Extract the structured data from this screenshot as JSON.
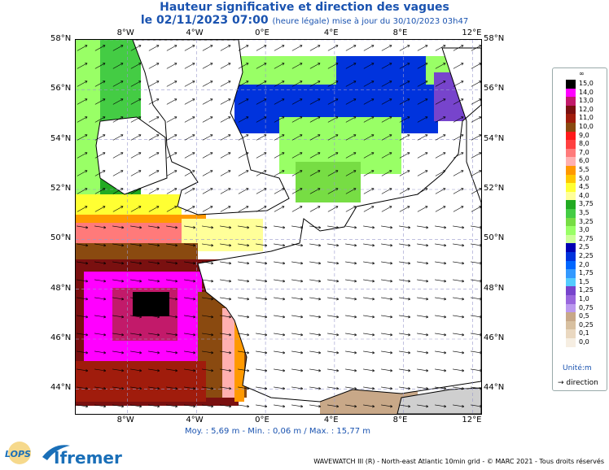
{
  "title": {
    "line1": "Hauteur significative et direction des vagues",
    "line2_main": "le 02/11/2023 07:00",
    "line2_sub": "(heure légale) mise à jour du 30/10/2023 03h47"
  },
  "axes": {
    "x_ticks": [
      "8°W",
      "4°W",
      "0°E",
      "4°E",
      "8°E",
      "12°E"
    ],
    "x_values": [
      -8,
      -4,
      0,
      4,
      8,
      12
    ],
    "x_range": [
      -11,
      12.5
    ],
    "y_ticks": [
      "58°N",
      "56°N",
      "54°N",
      "52°N",
      "50°N",
      "48°N",
      "46°N",
      "44°N"
    ],
    "y_values": [
      58,
      56,
      54,
      52,
      50,
      48,
      46,
      44
    ],
    "y_range": [
      43,
      58
    ]
  },
  "legend": {
    "top_symbol": "∞",
    "labels": [
      "15,0",
      "14,0",
      "13,0",
      "12,0",
      "11,0",
      "10,0",
      "9,0",
      "8,0",
      "7,0",
      "6,0",
      "5,5",
      "5,0",
      "4,5",
      "4,0",
      "3,75",
      "3,5",
      "3,25",
      "3,0",
      "2,75",
      "2,5",
      "2,25",
      "2,0",
      "1,75",
      "1,5",
      "1,25",
      "1,0",
      "0,75",
      "0,5",
      "0,25",
      "0,1",
      "0,0"
    ],
    "colors": [
      "#000000",
      "#ff00ff",
      "#c21a6a",
      "#7a1010",
      "#a01c0c",
      "#8a4a10",
      "#ff1a1a",
      "#ff4040",
      "#ff7a7a",
      "#ffb0b0",
      "#ff9900",
      "#ffc800",
      "#ffff33",
      "#ffff99",
      "#22aa22",
      "#44cc44",
      "#77dd44",
      "#99ff66",
      "#ccff99",
      "#0000b4",
      "#0033dd",
      "#0066ff",
      "#3399ff",
      "#55ccff",
      "#7744cc",
      "#9966dd",
      "#bb99ee",
      "#c8a888",
      "#d8c0a0",
      "#ead8c0",
      "#f6eee2"
    ],
    "unit": "Unité:m",
    "direction": "direction"
  },
  "stats": "Moy. : 5,69 m   -   Min. : 0,06 m / Max. : 15,77 m",
  "footer": "WAVEWATCH III (R) - North-east Atlantic 10min grid - © MARC 2021 - Tous droits réservés",
  "logos": {
    "lops": "LOPS",
    "ifremer": "Ifremer"
  }
}
